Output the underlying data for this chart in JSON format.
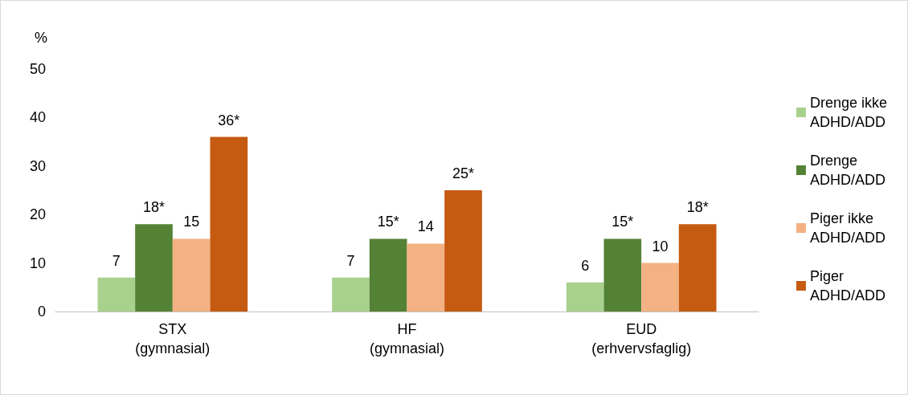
{
  "chart_data": {
    "type": "bar",
    "ylabel": "%",
    "categories": [
      "STX\n(gymnasial)",
      "HF\n(gymnasial)",
      "EUD\n(erhvervsfaglig)"
    ],
    "series": [
      {
        "name": "Drenge ikke\nADHD/ADD",
        "color": "#a9d18e",
        "values": [
          7,
          7,
          6
        ],
        "value_labels": [
          "7",
          "7",
          "6"
        ]
      },
      {
        "name": "Drenge\nADHD/ADD",
        "color": "#548235",
        "values": [
          18,
          15,
          15
        ],
        "value_labels": [
          "18*",
          "15*",
          "15*"
        ]
      },
      {
        "name": "Piger ikke\nADHD/ADD",
        "color": "#f4b183",
        "values": [
          15,
          14,
          10
        ],
        "value_labels": [
          "15",
          "14",
          "10"
        ]
      },
      {
        "name": "Piger\nADHD/ADD",
        "color": "#c55a11",
        "values": [
          36,
          25,
          18
        ],
        "value_labels": [
          "36*",
          "25*",
          "18*"
        ]
      }
    ],
    "ylim": [
      0,
      50
    ],
    "yticks": [
      0,
      10,
      20,
      30,
      40,
      50
    ],
    "grid": false,
    "legend": "right"
  }
}
